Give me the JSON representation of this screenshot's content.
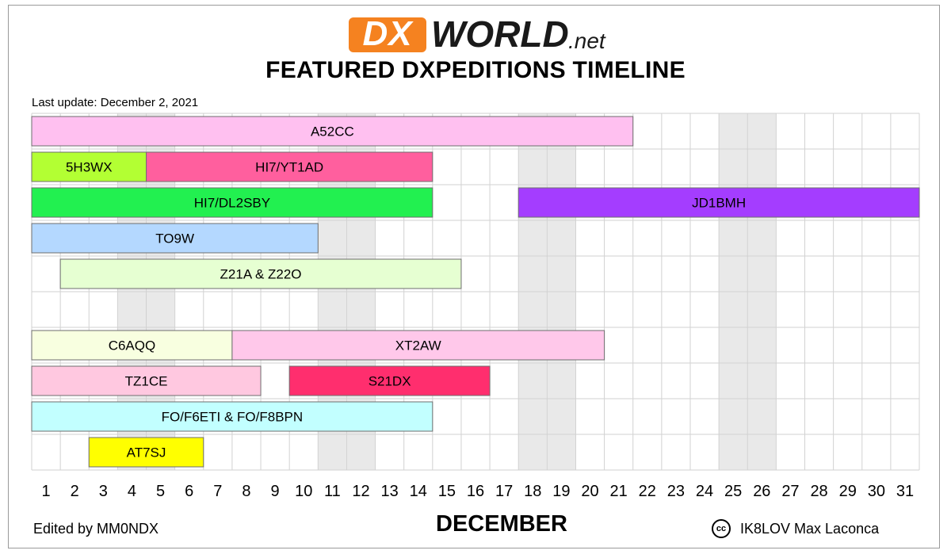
{
  "header": {
    "logo_dx": "DX",
    "logo_world": "WORLD",
    "logo_net": ".net",
    "title": "FEATURED DXPEDITIONS TIMELINE",
    "last_update": "Last update: December 2, 2021"
  },
  "footer": {
    "editor": "Edited by MM0NDX",
    "month": "DECEMBER",
    "cc_label": "cc",
    "credit": "IK8LOV Max Laconca"
  },
  "chart_data": {
    "type": "timeline",
    "title": "FEATURED DXPEDITIONS TIMELINE",
    "xlabel": "DECEMBER",
    "x_ticks": [
      1,
      2,
      3,
      4,
      5,
      6,
      7,
      8,
      9,
      10,
      11,
      12,
      13,
      14,
      15,
      16,
      17,
      18,
      19,
      20,
      21,
      22,
      23,
      24,
      25,
      26,
      27,
      28,
      29,
      30,
      31
    ],
    "xlim": [
      1,
      31
    ],
    "rows": 10,
    "weekend_days": [
      4,
      5,
      11,
      12,
      18,
      19,
      25,
      26
    ],
    "bars": [
      {
        "label": "A52CC",
        "row": 0,
        "start": 1,
        "end": 21,
        "color": "#ffc0f0"
      },
      {
        "label": "5H3WX",
        "row": 1,
        "start": 1,
        "end": 4,
        "color": "#b3ff33"
      },
      {
        "label": "HI7/YT1AD",
        "row": 1,
        "start": 5,
        "end": 14,
        "color": "#ff5f9e"
      },
      {
        "label": "HI7/DL2SBY",
        "row": 2,
        "start": 1,
        "end": 14,
        "color": "#22f050"
      },
      {
        "label": "JD1BMH",
        "row": 2,
        "start": 18,
        "end": 31,
        "color": "#a43dff"
      },
      {
        "label": "TO9W",
        "row": 3,
        "start": 1,
        "end": 10,
        "color": "#b4d8ff"
      },
      {
        "label": "Z21A & Z22O",
        "row": 4,
        "start": 2,
        "end": 15,
        "color": "#e6ffd2"
      },
      {
        "label": "C6AQQ",
        "row": 6,
        "start": 1,
        "end": 7,
        "color": "#f8ffe0"
      },
      {
        "label": "XT2AW",
        "row": 6,
        "start": 8,
        "end": 20,
        "color": "#ffc8ea"
      },
      {
        "label": "TZ1CE",
        "row": 7,
        "start": 1,
        "end": 8,
        "color": "#ffc8e0"
      },
      {
        "label": "S21DX",
        "row": 7,
        "start": 10,
        "end": 16,
        "color": "#ff2e6e"
      },
      {
        "label": "FO/F6ETI & FO/F8BPN",
        "row": 8,
        "start": 1,
        "end": 14,
        "color": "#c2ffff"
      },
      {
        "label": "AT7SJ",
        "row": 9,
        "start": 3,
        "end": 6,
        "color": "#ffff00"
      }
    ]
  }
}
